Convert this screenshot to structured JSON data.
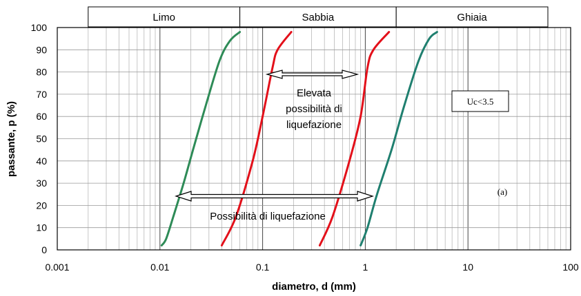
{
  "chart_data": {
    "type": "line",
    "xscale": "log",
    "xlim": [
      0.001,
      100
    ],
    "ylim": [
      0,
      100
    ],
    "xticks": [
      "0.001",
      "0.01",
      "0.1",
      "1",
      "10",
      "100"
    ],
    "yticks": [
      "0",
      "10",
      "20",
      "30",
      "40",
      "50",
      "60",
      "70",
      "80",
      "90",
      "100"
    ],
    "xlabel": "diametro, d (mm)",
    "ylabel": "passante, p (%)",
    "grid": true,
    "size_bands": [
      {
        "label": "Limo",
        "from": 0.002,
        "to": 0.06
      },
      {
        "label": "Sabbia",
        "from": 0.06,
        "to": 2
      },
      {
        "label": "Ghiaia",
        "from": 2,
        "to": 60
      }
    ],
    "series": [
      {
        "color": "#2e8b57",
        "points": [
          [
            0.0104,
            2
          ],
          [
            0.0115,
            5
          ],
          [
            0.0135,
            15
          ],
          [
            0.017,
            30
          ],
          [
            0.021,
            45
          ],
          [
            0.028,
            65
          ],
          [
            0.038,
            85
          ],
          [
            0.048,
            94
          ],
          [
            0.06,
            98
          ]
        ]
      },
      {
        "color": "#e3101a",
        "points": [
          [
            0.04,
            2
          ],
          [
            0.055,
            15
          ],
          [
            0.08,
            40
          ],
          [
            0.1,
            60
          ],
          [
            0.125,
            82
          ],
          [
            0.14,
            90
          ],
          [
            0.19,
            98
          ]
        ]
      },
      {
        "color": "#e3101a",
        "points": [
          [
            0.36,
            2
          ],
          [
            0.48,
            15
          ],
          [
            0.7,
            40
          ],
          [
            0.9,
            60
          ],
          [
            1.05,
            82
          ],
          [
            1.2,
            90
          ],
          [
            1.7,
            98
          ]
        ]
      },
      {
        "color": "#1f7f6f",
        "points": [
          [
            0.9,
            2
          ],
          [
            1.05,
            10
          ],
          [
            1.3,
            25
          ],
          [
            1.8,
            45
          ],
          [
            2.4,
            65
          ],
          [
            3.3,
            85
          ],
          [
            4.2,
            95
          ],
          [
            5,
            98
          ]
        ]
      }
    ],
    "annotations": {
      "elevata": [
        "Elevata",
        "possibilità di",
        "liquefazione"
      ],
      "possibilita": "Possibilità di liquefazione",
      "uc": "Uc<3.5",
      "panel": "(a)"
    }
  }
}
